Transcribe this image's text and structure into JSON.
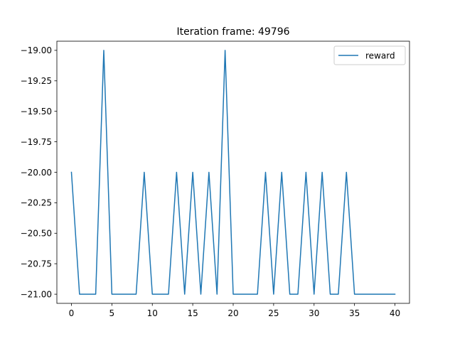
{
  "chart_data": {
    "type": "line",
    "title": "Iteration frame: 49796",
    "xlabel": "",
    "ylabel": "",
    "xlim": [
      -1.8,
      41.8
    ],
    "ylim": [
      -21.075,
      -18.925
    ],
    "x_ticks": [
      0,
      5,
      10,
      15,
      20,
      25,
      30,
      35,
      40
    ],
    "x_tick_labels": [
      "0",
      "5",
      "10",
      "15",
      "20",
      "25",
      "30",
      "35",
      "40"
    ],
    "y_ticks": [
      -19.0,
      -19.25,
      -19.5,
      -19.75,
      -20.0,
      -20.25,
      -20.5,
      -20.75,
      -21.0
    ],
    "y_tick_labels": [
      "−19.00",
      "−19.25",
      "−19.50",
      "−19.75",
      "−20.00",
      "−20.25",
      "−20.50",
      "−20.75",
      "−21.00"
    ],
    "grid": false,
    "legend_position": "top-right",
    "series": [
      {
        "name": "reward",
        "color": "#1f77b4",
        "x": [
          0,
          1,
          2,
          3,
          4,
          5,
          6,
          7,
          8,
          9,
          10,
          11,
          12,
          13,
          14,
          15,
          16,
          17,
          18,
          19,
          20,
          21,
          22,
          23,
          24,
          25,
          26,
          27,
          28,
          29,
          30,
          31,
          32,
          33,
          34,
          35,
          36,
          37,
          38,
          39,
          40
        ],
        "y": [
          -20,
          -21,
          -21,
          -21,
          -19,
          -21,
          -21,
          -21,
          -21,
          -20,
          -21,
          -21,
          -21,
          -20,
          -21,
          -20,
          -21,
          -20,
          -21,
          -19,
          -21,
          -21,
          -21,
          -21,
          -20,
          -21,
          -20,
          -21,
          -21,
          -20,
          -21,
          -20,
          -21,
          -21,
          -20,
          -21,
          -21,
          -21,
          -21,
          -21,
          -21
        ]
      }
    ]
  }
}
